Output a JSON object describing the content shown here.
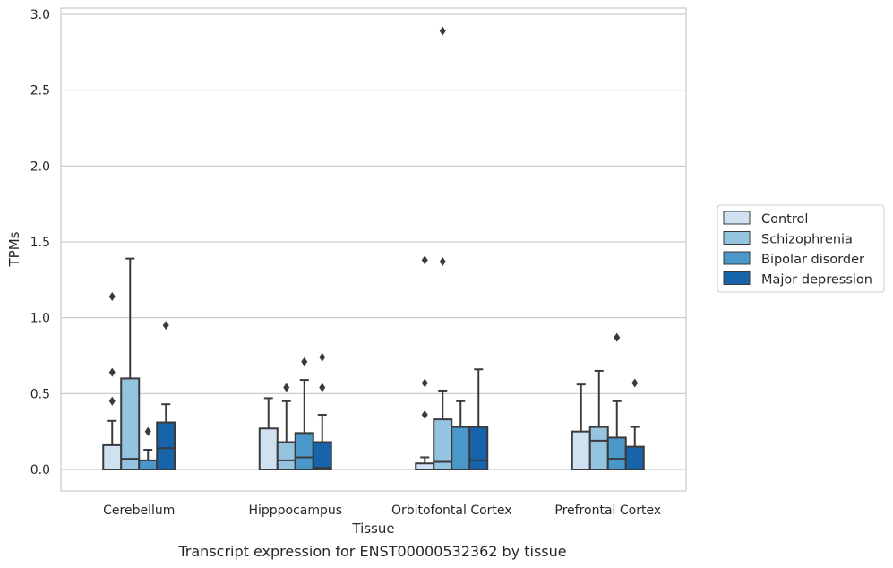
{
  "caption": "Transcript expression for ENST00000532362 by tissue",
  "chart_data": {
    "type": "box",
    "xlabel": "Tissue",
    "ylabel": "TPMs",
    "ylim": [
      -0.14,
      3.05
    ],
    "yticks": [
      "0.0",
      "0.5",
      "1.0",
      "1.5",
      "2.0",
      "2.5",
      "3.0"
    ],
    "grid": "horizontal",
    "legend_position": "right",
    "categories": [
      "Cerebellum",
      "Hipppocampus",
      "Orbitofontal Cortex",
      "Prefrontal Cortex"
    ],
    "series": [
      {
        "name": "Control",
        "color": "#d0e1f2",
        "boxes": [
          {
            "q1": 0.0,
            "median": 0.0,
            "q3": 0.16,
            "whisker_low": 0.0,
            "whisker_high": 0.32,
            "outliers": [
              0.45,
              0.64,
              1.14
            ]
          },
          {
            "q1": 0.0,
            "median": 0.0,
            "q3": 0.27,
            "whisker_low": 0.0,
            "whisker_high": 0.47,
            "outliers": []
          },
          {
            "q1": 0.0,
            "median": 0.0,
            "q3": 0.04,
            "whisker_low": 0.0,
            "whisker_high": 0.08,
            "outliers": [
              0.36,
              0.57,
              1.38
            ]
          },
          {
            "q1": 0.0,
            "median": 0.0,
            "q3": 0.25,
            "whisker_low": 0.0,
            "whisker_high": 0.56,
            "outliers": []
          }
        ]
      },
      {
        "name": "Schizophrenia",
        "color": "#94c4df",
        "boxes": [
          {
            "q1": 0.0,
            "median": 0.07,
            "q3": 0.6,
            "whisker_low": 0.0,
            "whisker_high": 1.39,
            "outliers": []
          },
          {
            "q1": 0.0,
            "median": 0.06,
            "q3": 0.18,
            "whisker_low": 0.0,
            "whisker_high": 0.45,
            "outliers": [
              0.54
            ]
          },
          {
            "q1": 0.0,
            "median": 0.05,
            "q3": 0.33,
            "whisker_low": 0.0,
            "whisker_high": 0.52,
            "outliers": [
              1.37,
              2.89
            ]
          },
          {
            "q1": 0.0,
            "median": 0.19,
            "q3": 0.28,
            "whisker_low": 0.0,
            "whisker_high": 0.65,
            "outliers": []
          }
        ]
      },
      {
        "name": "Bipolar disorder",
        "color": "#4a98c9",
        "boxes": [
          {
            "q1": 0.0,
            "median": 0.0,
            "q3": 0.06,
            "whisker_low": 0.0,
            "whisker_high": 0.13,
            "outliers": [
              0.25
            ]
          },
          {
            "q1": 0.0,
            "median": 0.08,
            "q3": 0.24,
            "whisker_low": 0.0,
            "whisker_high": 0.59,
            "outliers": [
              0.71
            ]
          },
          {
            "q1": 0.0,
            "median": 0.0,
            "q3": 0.28,
            "whisker_low": 0.0,
            "whisker_high": 0.45,
            "outliers": []
          },
          {
            "q1": 0.0,
            "median": 0.07,
            "q3": 0.21,
            "whisker_low": 0.0,
            "whisker_high": 0.45,
            "outliers": [
              0.87
            ]
          }
        ]
      },
      {
        "name": "Major depression",
        "color": "#1764ab",
        "boxes": [
          {
            "q1": 0.0,
            "median": 0.14,
            "q3": 0.31,
            "whisker_low": 0.0,
            "whisker_high": 0.43,
            "outliers": [
              0.95
            ]
          },
          {
            "q1": 0.0,
            "median": 0.01,
            "q3": 0.18,
            "whisker_low": 0.0,
            "whisker_high": 0.36,
            "outliers": [
              0.54,
              0.74
            ]
          },
          {
            "q1": 0.0,
            "median": 0.06,
            "q3": 0.28,
            "whisker_low": 0.0,
            "whisker_high": 0.66,
            "outliers": []
          },
          {
            "q1": 0.0,
            "median": 0.0,
            "q3": 0.15,
            "whisker_low": 0.0,
            "whisker_high": 0.28,
            "outliers": [
              0.57
            ]
          }
        ]
      }
    ]
  }
}
